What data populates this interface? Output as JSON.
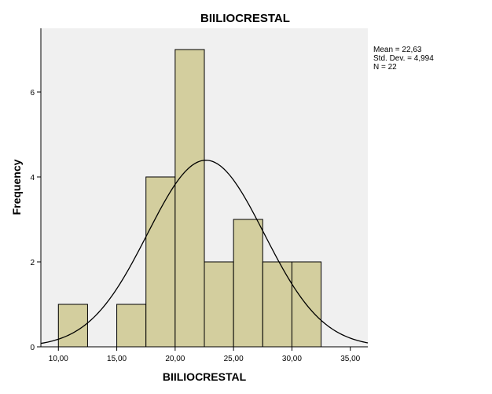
{
  "chart_data": {
    "type": "bar",
    "subtype": "histogram",
    "title": "BIILIOCRESTAL",
    "xlabel": "BIILIOCRESTAL",
    "ylabel": "Frequency",
    "xlim": [
      8.5,
      36.5
    ],
    "ylim": [
      0,
      7.5
    ],
    "bin_width": 2.5,
    "bins": [
      {
        "start": 10.0,
        "end": 12.5,
        "count": 1
      },
      {
        "start": 15.0,
        "end": 17.5,
        "count": 1
      },
      {
        "start": 17.5,
        "end": 20.0,
        "count": 4
      },
      {
        "start": 20.0,
        "end": 22.5,
        "count": 7
      },
      {
        "start": 22.5,
        "end": 25.0,
        "count": 2
      },
      {
        "start": 25.0,
        "end": 27.5,
        "count": 3
      },
      {
        "start": 27.5,
        "end": 30.0,
        "count": 2
      },
      {
        "start": 30.0,
        "end": 32.5,
        "count": 2
      }
    ],
    "x_ticks": [
      {
        "value": 10,
        "label": "10,00"
      },
      {
        "value": 15,
        "label": "15,00"
      },
      {
        "value": 20,
        "label": "20,00"
      },
      {
        "value": 25,
        "label": "25,00"
      },
      {
        "value": 30,
        "label": "30,00"
      },
      {
        "value": 35,
        "label": "35,00"
      }
    ],
    "y_ticks": [
      {
        "value": 0,
        "label": "0"
      },
      {
        "value": 2,
        "label": "2"
      },
      {
        "value": 4,
        "label": "4"
      },
      {
        "value": 6,
        "label": "6"
      }
    ],
    "normal_curve": {
      "mean": 22.63,
      "sd": 4.994,
      "n": 22
    },
    "stats_legend": [
      "Mean = 22,63",
      "Std. Dev. = 4,994",
      "N = 22"
    ],
    "colors": {
      "bar_fill": "#d3ce9e",
      "bar_stroke": "#000000",
      "plot_background": "#f0f0f0",
      "curve": "#000000"
    }
  }
}
